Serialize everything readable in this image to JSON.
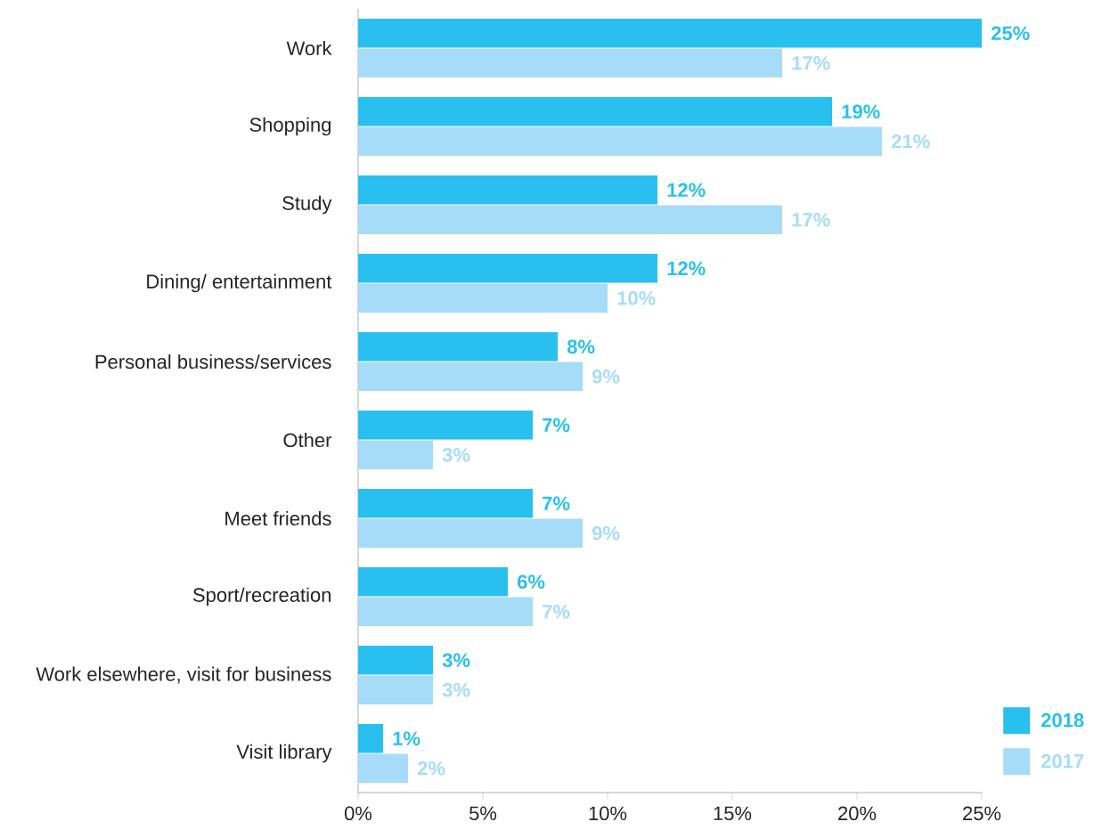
{
  "chart_data": {
    "type": "bar",
    "orientation": "horizontal",
    "categories": [
      "Work",
      "Shopping",
      "Study",
      "Dining/ entertainment",
      "Personal business/services",
      "Other",
      "Meet friends",
      "Sport/recreation",
      "Work elsewhere, visit for business",
      "Visit library"
    ],
    "series": [
      {
        "name": "2018",
        "color": "#29c0ef",
        "values": [
          25,
          19,
          12,
          12,
          8,
          7,
          7,
          6,
          3,
          1
        ],
        "value_labels": [
          "25%",
          "19%",
          "12%",
          "12%",
          "8%",
          "7%",
          "7%",
          "6%",
          "3%",
          "1%"
        ]
      },
      {
        "name": "2017",
        "color": "#a6dcf7",
        "values": [
          17,
          21,
          17,
          10,
          9,
          3,
          9,
          7,
          3,
          2
        ],
        "value_labels": [
          "17%",
          "21%",
          "17%",
          "10%",
          "9%",
          "3%",
          "9%",
          "7%",
          "3%",
          "2%"
        ]
      }
    ],
    "xlim": [
      0,
      25
    ],
    "xticks": [
      {
        "value": 0,
        "label": "0%"
      },
      {
        "value": 5,
        "label": "5%"
      },
      {
        "value": 10,
        "label": "10%"
      },
      {
        "value": 15,
        "label": "15%"
      },
      {
        "value": 20,
        "label": "20%"
      },
      {
        "value": 25,
        "label": "25%"
      }
    ],
    "grid": false,
    "legend": "bottom right"
  }
}
